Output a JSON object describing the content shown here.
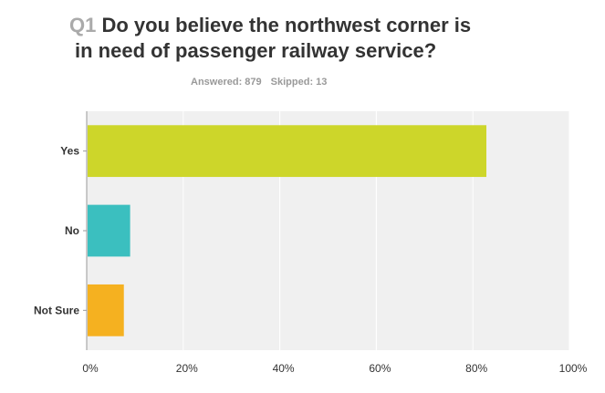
{
  "question": {
    "number": "Q1",
    "text_line_1": "Do you believe the northwest corner is",
    "text_line_2": "in need of passenger railway service?"
  },
  "stats": {
    "answered": "Answered: 879",
    "skipped": "Skipped: 13"
  },
  "chart_data": {
    "type": "bar",
    "orientation": "horizontal",
    "categories": [
      "Yes",
      "No",
      "Not Sure"
    ],
    "values": [
      82.8,
      9.0,
      7.7
    ],
    "colors": [
      "#cdd62a",
      "#3bbfbf",
      "#f5b120"
    ],
    "xlim": [
      0,
      100
    ],
    "xticks": [
      "0%",
      "20%",
      "40%",
      "60%",
      "80%",
      "100%"
    ],
    "grid": true,
    "background": "#f0f0f0"
  }
}
